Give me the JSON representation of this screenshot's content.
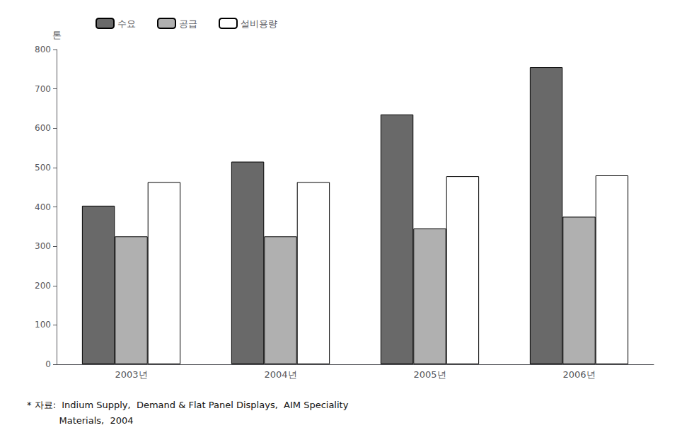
{
  "chart_data": {
    "type": "bar",
    "categories": [
      "2003년",
      "2004년",
      "2005년",
      "2006년"
    ],
    "series": [
      {
        "name": "수요",
        "color": "#696969",
        "values": [
          403,
          515,
          635,
          755
        ]
      },
      {
        "name": "공급",
        "color": "#b0b0b0",
        "values": [
          325,
          325,
          345,
          375
        ]
      },
      {
        "name": "설비용량",
        "color": "#ffffff",
        "values": [
          463,
          463,
          478,
          480
        ]
      }
    ],
    "ylabel": "톤",
    "ylim": [
      0,
      800
    ],
    "yticks": [
      0,
      100,
      200,
      300,
      400,
      500,
      600,
      700,
      800
    ],
    "grid": false,
    "legend": "upper left",
    "annotations": [
      "* 자료:  Indium Supply,  Demand & Flat Panel Displays,  AIM Speciality",
      "           Materials,  2004"
    ]
  }
}
